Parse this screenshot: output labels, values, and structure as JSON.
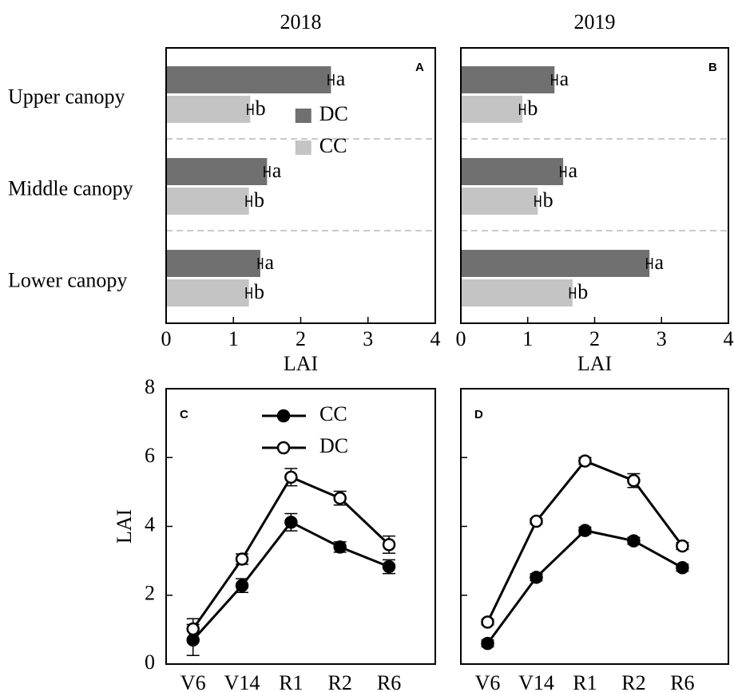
{
  "chart_data": [
    {
      "type": "bar",
      "orientation": "horizontal",
      "title": "2018",
      "panel_label": "A",
      "categories": [
        "Upper canopy",
        "Middle canopy",
        "Lower canopy"
      ],
      "series": [
        {
          "name": "DC",
          "color": "#707070",
          "values": [
            2.45,
            1.5,
            1.4
          ],
          "errors": [
            0.04,
            0.04,
            0.03
          ],
          "letters": [
            "a",
            "a",
            "a"
          ]
        },
        {
          "name": "CC",
          "color": "#c4c4c4",
          "values": [
            1.25,
            1.23,
            1.23
          ],
          "errors": [
            0.04,
            0.04,
            0.04
          ],
          "letters": [
            "b",
            "b",
            "b"
          ]
        }
      ],
      "xlabel": "LAI",
      "xlim": [
        0,
        4
      ],
      "xticks": [
        0,
        1,
        2,
        3,
        4
      ],
      "legend": "center"
    },
    {
      "type": "bar",
      "orientation": "horizontal",
      "title": "2019",
      "panel_label": "B",
      "categories": [
        null,
        null,
        null
      ],
      "series": [
        {
          "color": "#707070",
          "values": [
            1.4,
            1.53,
            2.82
          ],
          "errors": [
            0.04,
            0.04,
            0.04
          ],
          "letters": [
            "a",
            "a",
            "a"
          ]
        },
        {
          "color": "#c4c4c4",
          "values": [
            0.92,
            1.15,
            1.67
          ],
          "errors": [
            0.04,
            0.04,
            0.04
          ],
          "letters": [
            "b",
            "b",
            "b"
          ]
        }
      ],
      "xlabel": "LAI",
      "xlim": [
        0,
        4
      ],
      "xticks": [
        0,
        1,
        2,
        3,
        4
      ]
    },
    {
      "type": "line",
      "panel_label": "C",
      "categories": [
        "V6",
        "V14",
        "R1",
        "R2",
        "R6"
      ],
      "series": [
        {
          "name": "CC",
          "color": "#000000",
          "marker": "filled",
          "values": [
            0.7,
            2.28,
            4.12,
            3.4,
            2.83
          ],
          "errors": [
            0.45,
            0.2,
            0.25,
            0.15,
            0.2
          ]
        },
        {
          "name": "DC",
          "color": "#000000",
          "marker": "open",
          "values": [
            1.02,
            3.05,
            5.43,
            4.82,
            3.47
          ],
          "errors": [
            0.3,
            0.15,
            0.25,
            0.2,
            0.25
          ]
        }
      ],
      "ylabel": "LAI",
      "ylim": [
        0,
        8
      ],
      "yticks": [
        0,
        2,
        4,
        6,
        8
      ],
      "legend": "top-center"
    },
    {
      "type": "line",
      "panel_label": "D",
      "categories": [
        "V6",
        "V14",
        "R1",
        "R2",
        "R6"
      ],
      "series": [
        {
          "color": "#000000",
          "marker": "filled",
          "values": [
            0.6,
            2.52,
            3.88,
            3.58,
            2.8
          ],
          "errors": [
            0.1,
            0.1,
            0.1,
            0.1,
            0.1
          ]
        },
        {
          "color": "#000000",
          "marker": "open",
          "values": [
            1.22,
            4.15,
            5.9,
            5.33,
            3.43
          ],
          "errors": [
            0.08,
            0.08,
            0.1,
            0.2,
            0.1
          ]
        }
      ],
      "ylim": [
        0,
        8
      ],
      "yticks": [
        0,
        2,
        4,
        6,
        8
      ],
      "ytick_labels": false
    }
  ]
}
